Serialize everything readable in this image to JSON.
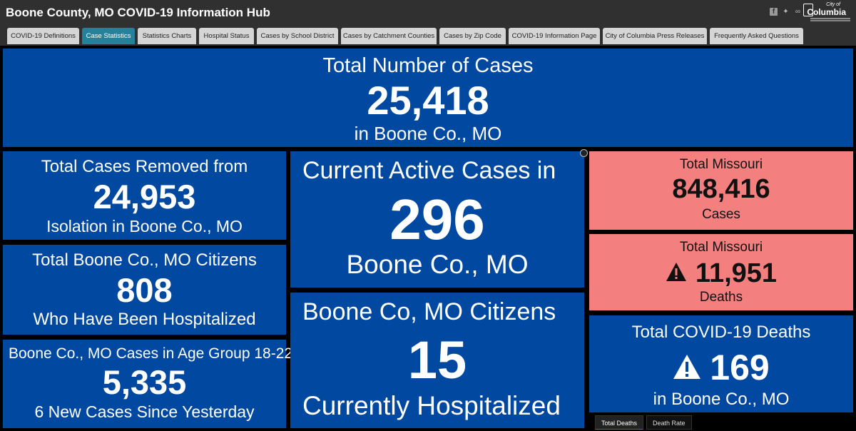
{
  "header": {
    "title": "Boone County, MO COVID-19 Information Hub"
  },
  "social": {
    "icons": [
      "facebook-icon",
      "twitter-icon",
      "link-icon"
    ]
  },
  "logo": {
    "city": "City of",
    "name": "Columbia"
  },
  "tabs": [
    {
      "label": "COVID-19 Definitions"
    },
    {
      "label": "Case Statistics"
    },
    {
      "label": "Statistics Charts"
    },
    {
      "label": "Hospital Status"
    },
    {
      "label": "Cases by School District"
    },
    {
      "label": "Cases by Catchment Counties"
    },
    {
      "label": "Cases by Zip Code"
    },
    {
      "label": "COVID-19 Information Page"
    },
    {
      "label": "City of Columbia Press Releases"
    },
    {
      "label": "Frequently Asked Questions"
    }
  ],
  "active_tab": "Case Statistics",
  "panels": {
    "total_cases": {
      "title": "Total Number of Cases",
      "value": "25,418",
      "subtitle": "in Boone Co., MO"
    },
    "removed": {
      "title": "Total Cases Removed from",
      "value": "24,953",
      "subtitle": "Isolation in Boone Co., MO"
    },
    "hospitalized_total": {
      "title": "Total Boone Co., MO Citizens",
      "value": "808",
      "subtitle": "Who Have Been Hospitalized"
    },
    "age_group": {
      "title": "Boone Co., MO Cases in Age Group 18-22",
      "value": "5,335",
      "subtitle": "6 New Cases Since Yesterday"
    },
    "active": {
      "title": "Current Active Cases in",
      "value": "296",
      "subtitle": "Boone Co., MO"
    },
    "current_hosp": {
      "title": "Boone Co, MO Citizens",
      "value": "15",
      "subtitle": "Currently Hospitalized"
    },
    "mo_cases": {
      "title": "Total Missouri",
      "value": "848,416",
      "subtitle": "Cases"
    },
    "mo_deaths": {
      "title": "Total Missouri",
      "value": "11,951",
      "subtitle": "Deaths"
    },
    "deaths": {
      "title": "Total COVID-19 Deaths",
      "value": "169",
      "subtitle": "in Boone Co., MO"
    }
  },
  "bottom_tabs": [
    {
      "label": "Total Deaths"
    },
    {
      "label": "Death Rate"
    }
  ],
  "colors": {
    "panel_blue": "#0048a0",
    "panel_pink": "#f47f7f",
    "tab_active": "#26829a",
    "background": "#000000"
  }
}
